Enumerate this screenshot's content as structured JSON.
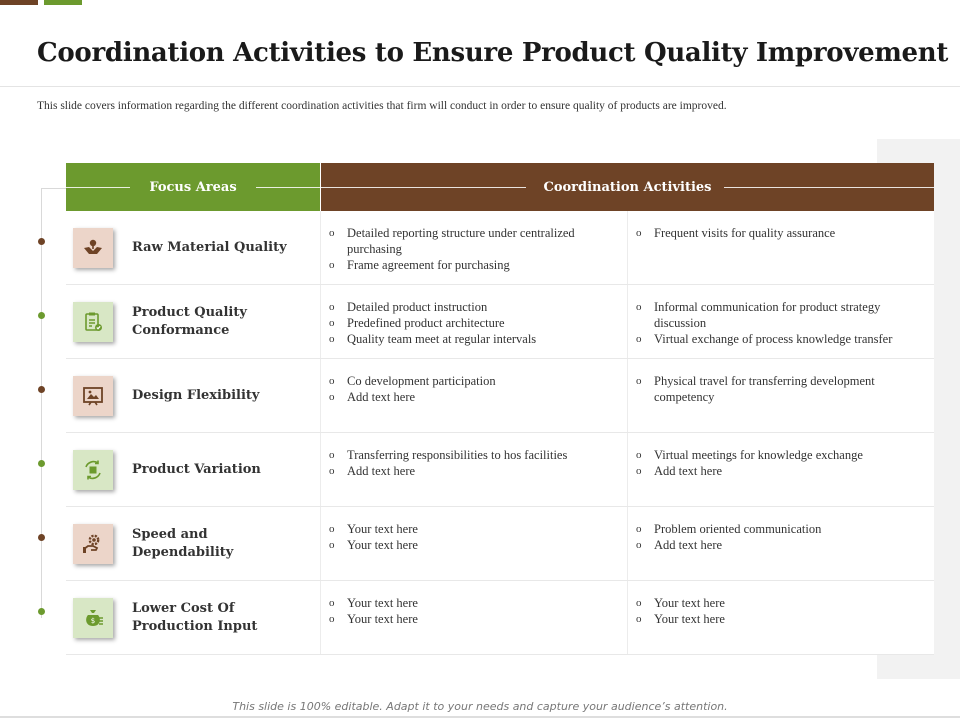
{
  "title": "Coordination Activities to Ensure Product Quality Improvement",
  "subtitle": "This slide covers information regarding the different coordination activities that firm will conduct in order to ensure quality of products are improved.",
  "table": {
    "headers": {
      "focus": "Focus Areas",
      "activities": "Coordination Activities"
    },
    "bullet_marker": "o",
    "rows": [
      {
        "focus": "Raw Material Quality",
        "icon": "hands-plant-icon",
        "accent": "#6e4326",
        "col1": [
          "Detailed reporting structure under centralized purchasing",
          "Frame agreement for purchasing"
        ],
        "col2": [
          "Frequent visits for quality assurance"
        ]
      },
      {
        "focus": "Product Quality Conformance",
        "icon": "clipboard-check-icon",
        "accent": "#6c9a2e",
        "col1": [
          "Detailed product instruction",
          "Predefined product architecture",
          "Quality team meet at regular intervals"
        ],
        "col2": [
          "Informal communication for product strategy discussion",
          "Virtual exchange of process knowledge transfer"
        ]
      },
      {
        "focus": "Design Flexibility",
        "icon": "design-board-icon",
        "accent": "#6e4326",
        "col1": [
          "Co development participation",
          "Add text here"
        ],
        "col2": [
          "Physical travel for transferring development competency"
        ]
      },
      {
        "focus": "Product Variation",
        "icon": "box-cycle-icon",
        "accent": "#6c9a2e",
        "col1": [
          "Transferring responsibilities to hos facilities",
          "Add text here"
        ],
        "col2": [
          "Virtual meetings for knowledge exchange",
          "Add text here"
        ]
      },
      {
        "focus": "Speed and Dependability",
        "icon": "hand-gear-icon",
        "accent": "#6e4326",
        "col1": [
          "Your text here",
          "Your text here"
        ],
        "col2": [
          "Problem oriented communication",
          "Add text here"
        ]
      },
      {
        "focus": "Lower Cost Of Production Input",
        "icon": "money-bag-icon",
        "accent": "#6c9a2e",
        "col1": [
          "Your text here",
          "Your text here"
        ],
        "col2": [
          "Your text here",
          "Your text here"
        ]
      }
    ]
  },
  "footer": "This slide is 100% editable. Adapt it to your needs and capture your audience’s attention."
}
